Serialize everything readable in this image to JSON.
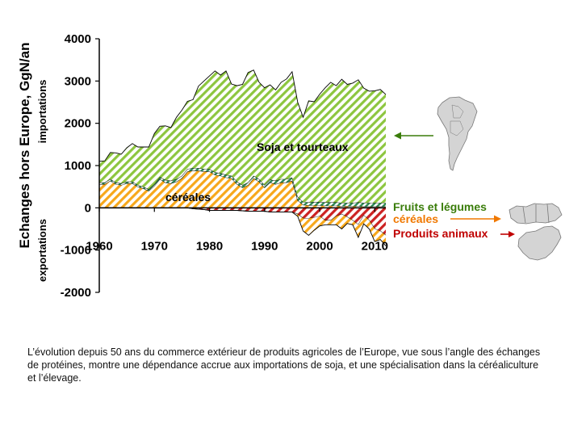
{
  "caption": "L’évolution depuis 50 ans du commerce extérieur de produits agricoles de l’Europe, vue sous l’angle des échanges de protéines, montre une dépendance accrue aux importations de soja, et une spécialisation dans la céréaliculture et l’élevage.",
  "colors": {
    "soja": "#8dc63f",
    "cereales": "#f7a81b",
    "fruits": "#2e8b57",
    "animaux": "#cc2222",
    "fruits_label": "#3a7d0a",
    "cereales_label": "#f07800",
    "animaux_label": "#c00000",
    "map_fill": "#d4d4d4",
    "map_stroke": "#777777"
  },
  "chart_data": {
    "type": "area",
    "title": "",
    "ylabel": "Echanges hors Europe, GgN/an",
    "ylabel_top": "importations",
    "ylabel_bottom": "exportations",
    "xlim": [
      1960,
      2012
    ],
    "ylim": [
      -2000,
      4000
    ],
    "xticks": [
      1960,
      1970,
      1980,
      1990,
      2000,
      2010
    ],
    "yticks": [
      -2000,
      -1000,
      0,
      1000,
      2000,
      3000,
      4000
    ],
    "x": [
      1960,
      1961,
      1962,
      1963,
      1964,
      1965,
      1966,
      1967,
      1968,
      1969,
      1970,
      1971,
      1972,
      1973,
      1974,
      1975,
      1976,
      1977,
      1978,
      1979,
      1980,
      1981,
      1982,
      1983,
      1984,
      1985,
      1986,
      1987,
      1988,
      1989,
      1990,
      1991,
      1992,
      1993,
      1994,
      1995,
      1996,
      1997,
      1998,
      1999,
      2000,
      2001,
      2002,
      2003,
      2004,
      2005,
      2006,
      2007,
      2008,
      2009,
      2010,
      2011,
      2012
    ],
    "series": [
      {
        "name": "céréales",
        "key": "cereales",
        "sign": "import",
        "values": [
          560,
          560,
          640,
          560,
          540,
          580,
          580,
          500,
          460,
          400,
          520,
          680,
          600,
          580,
          620,
          700,
          860,
          880,
          880,
          860,
          860,
          780,
          760,
          720,
          700,
          560,
          480,
          540,
          700,
          620,
          480,
          600,
          560,
          600,
          600,
          640,
          180,
          70,
          60,
          60,
          60,
          50,
          50,
          50,
          40,
          40,
          40,
          40,
          30,
          30,
          30,
          30,
          30
        ]
      },
      {
        "name": "Fruits et légumes",
        "key": "fruits",
        "sign": "import",
        "values": [
          40,
          40,
          40,
          40,
          40,
          40,
          40,
          40,
          40,
          40,
          40,
          50,
          60,
          60,
          60,
          60,
          60,
          60,
          60,
          60,
          60,
          60,
          60,
          60,
          60,
          60,
          60,
          60,
          60,
          60,
          60,
          70,
          80,
          80,
          80,
          80,
          80,
          70,
          70,
          80,
          80,
          80,
          80,
          80,
          80,
          80,
          80,
          90,
          90,
          90,
          90,
          90,
          90
        ]
      },
      {
        "name": "Soja et tourteaux",
        "key": "soja",
        "sign": "import",
        "values": [
          500,
          510,
          630,
          700,
          690,
          800,
          900,
          900,
          940,
          1000,
          1200,
          1200,
          1280,
          1260,
          1460,
          1550,
          1600,
          1620,
          1940,
          2080,
          2200,
          2400,
          2320,
          2460,
          2170,
          2270,
          2380,
          2600,
          2500,
          2290,
          2300,
          2240,
          2150,
          2290,
          2370,
          2500,
          2240,
          2000,
          2400,
          2370,
          2550,
          2710,
          2840,
          2760,
          2920,
          2800,
          2830,
          2900,
          2710,
          2640,
          2650,
          2680,
          2560
        ]
      },
      {
        "name": "Produits animaux",
        "key": "animaux",
        "sign": "export",
        "values": [
          0,
          0,
          0,
          0,
          0,
          0,
          0,
          0,
          0,
          0,
          0,
          0,
          0,
          0,
          0,
          0,
          0,
          -20,
          -30,
          -40,
          -60,
          -60,
          -60,
          -60,
          -60,
          -60,
          -70,
          -80,
          -80,
          -80,
          -80,
          -100,
          -100,
          -100,
          -100,
          -100,
          -150,
          -250,
          -250,
          -230,
          -200,
          -300,
          -300,
          -200,
          -150,
          -220,
          -300,
          -400,
          -180,
          -300,
          -500,
          -550,
          -650
        ]
      },
      {
        "name": "céréales",
        "key": "cereales",
        "sign": "export",
        "values": [
          0,
          0,
          0,
          0,
          0,
          0,
          0,
          0,
          0,
          0,
          0,
          0,
          0,
          0,
          0,
          0,
          0,
          0,
          0,
          0,
          0,
          0,
          0,
          0,
          0,
          0,
          0,
          0,
          0,
          0,
          0,
          0,
          0,
          0,
          0,
          0,
          -50,
          -300,
          -400,
          -300,
          -230,
          -100,
          -100,
          -200,
          -350,
          -150,
          -100,
          -300,
          -200,
          -200,
          -300,
          -200,
          -250
        ]
      }
    ],
    "annotations": [
      {
        "text": "Soja et tourteaux",
        "key": "soja"
      },
      {
        "text": "céréales",
        "key": "cereales"
      }
    ],
    "legend": [
      {
        "text": "Fruits et légumes",
        "key": "fruits"
      },
      {
        "text": "céréales",
        "key": "cereales"
      },
      {
        "text": "Produits animaux",
        "key": "animaux"
      }
    ],
    "maps": [
      "south-america-map",
      "mediterranean-map",
      "china-map"
    ]
  }
}
